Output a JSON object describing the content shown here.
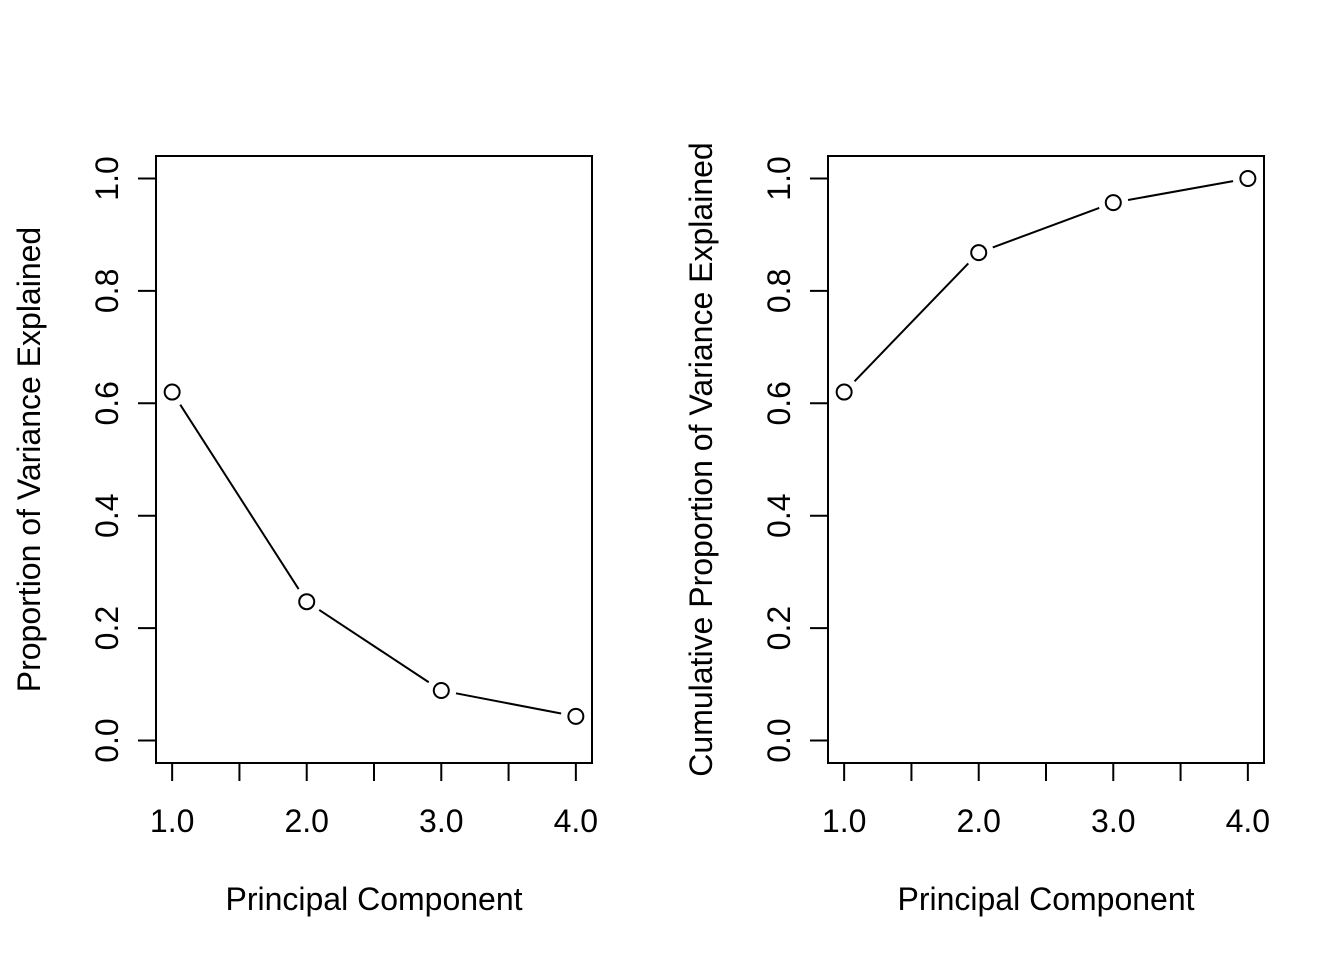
{
  "figure": {
    "background_color": "#ffffff",
    "stroke_color": "#000000",
    "marker_fill_color": "#ffffff",
    "panels": [
      "scree-plot",
      "cumulative-variance-plot"
    ]
  },
  "chart_data": [
    {
      "type": "line",
      "x": [
        1,
        2,
        3,
        4
      ],
      "y": [
        0.62,
        0.247,
        0.089,
        0.043
      ],
      "title": "",
      "xlabel": "Principal Component",
      "ylabel": "Proportion of Variance Explained",
      "xlim": [
        1,
        4
      ],
      "ylim": [
        0,
        1
      ],
      "x_ticks": [
        1,
        1.5,
        2,
        2.5,
        3,
        3.5,
        4
      ],
      "x_tick_labels": [
        "1.0",
        "",
        "2.0",
        "",
        "3.0",
        "",
        "4.0"
      ],
      "y_ticks": [
        0,
        0.2,
        0.4,
        0.6,
        0.8,
        1
      ],
      "y_tick_labels": [
        "0.0",
        "0.2",
        "0.4",
        "0.6",
        "0.8",
        "1.0"
      ],
      "marker": "open-circle",
      "point_line_style": "line-segments-with-gap-around-markers",
      "grid": false,
      "legend": null
    },
    {
      "type": "line",
      "x": [
        1,
        2,
        3,
        4
      ],
      "y": [
        0.62,
        0.868,
        0.957,
        1.0
      ],
      "title": "",
      "xlabel": "Principal Component",
      "ylabel": "Cumulative Proportion of Variance Explained",
      "xlim": [
        1,
        4
      ],
      "ylim": [
        0,
        1
      ],
      "x_ticks": [
        1,
        1.5,
        2,
        2.5,
        3,
        3.5,
        4
      ],
      "x_tick_labels": [
        "1.0",
        "",
        "2.0",
        "",
        "3.0",
        "",
        "4.0"
      ],
      "y_ticks": [
        0,
        0.2,
        0.4,
        0.6,
        0.8,
        1
      ],
      "y_tick_labels": [
        "0.0",
        "0.2",
        "0.4",
        "0.6",
        "0.8",
        "1.0"
      ],
      "marker": "open-circle",
      "point_line_style": "line-segments-with-gap-around-markers",
      "grid": false,
      "legend": null
    }
  ]
}
